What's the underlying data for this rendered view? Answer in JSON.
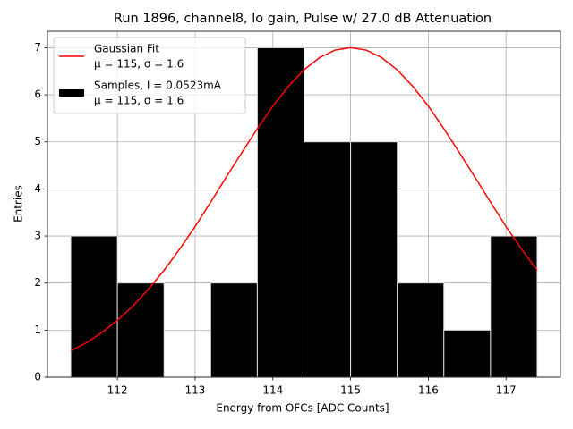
{
  "chart_data": {
    "type": "histogram",
    "title": "Run 1896, channel8, lo gain, Pulse w/ 27.0 dB Attenuation",
    "xlabel": "Energy from OFCs [ADC Counts]",
    "ylabel": "Entries",
    "name": "Samples, I = 0.0523mA\nμ = 115, σ = 1.6",
    "color": "#000000",
    "bins": [
      111.4,
      112.0,
      112.6,
      113.2,
      113.8,
      114.4,
      115.0,
      115.6,
      116.2,
      116.8,
      117.4
    ],
    "counts": [
      3,
      2,
      0,
      2,
      7,
      5,
      5,
      2,
      1,
      3
    ],
    "line": {
      "type": "line",
      "name": "Gaussian Fit\nμ = 115, σ = 1.6",
      "color": "#ff0000",
      "x": [
        111.4,
        111.6,
        111.8,
        112.0,
        112.2,
        112.4,
        112.6,
        112.8,
        113.0,
        113.2,
        113.4,
        113.6,
        113.8,
        114.0,
        114.2,
        114.4,
        114.6,
        114.8,
        115.0,
        115.2,
        115.4,
        115.6,
        115.8,
        116.0,
        116.2,
        116.4,
        116.6,
        116.8,
        117.0,
        117.2,
        117.4
      ],
      "values": [
        0.56,
        0.73,
        0.95,
        1.21,
        1.51,
        1.87,
        2.27,
        2.72,
        3.2,
        3.72,
        4.25,
        4.77,
        5.28,
        5.76,
        6.18,
        6.53,
        6.79,
        6.95,
        7.0,
        6.95,
        6.79,
        6.53,
        6.18,
        5.76,
        5.28,
        4.77,
        4.25,
        3.72,
        3.2,
        2.72,
        2.27
      ]
    },
    "xlim": [
      111.1,
      117.7
    ],
    "ylim": [
      0,
      7.35
    ],
    "xticks": [
      112,
      113,
      114,
      115,
      116,
      117
    ],
    "yticks": [
      0,
      1,
      2,
      3,
      4,
      5,
      6,
      7
    ],
    "grid": true,
    "legend": "upper left"
  }
}
